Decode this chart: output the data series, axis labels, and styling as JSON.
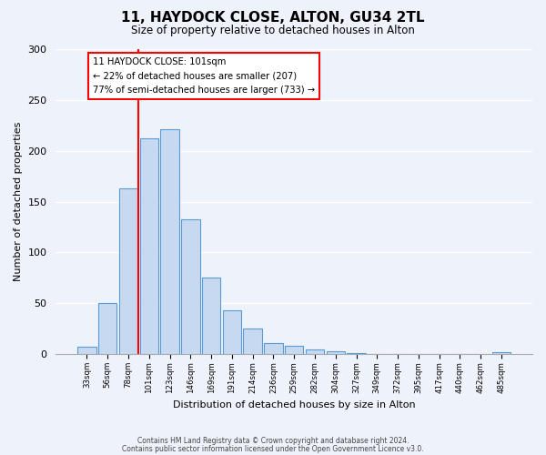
{
  "title": "11, HAYDOCK CLOSE, ALTON, GU34 2TL",
  "subtitle": "Size of property relative to detached houses in Alton",
  "xlabel": "Distribution of detached houses by size in Alton",
  "ylabel": "Number of detached properties",
  "footnote1": "Contains HM Land Registry data © Crown copyright and database right 2024.",
  "footnote2": "Contains public sector information licensed under the Open Government Licence v3.0.",
  "bin_labels": [
    "33sqm",
    "56sqm",
    "78sqm",
    "101sqm",
    "123sqm",
    "146sqm",
    "169sqm",
    "191sqm",
    "214sqm",
    "236sqm",
    "259sqm",
    "282sqm",
    "304sqm",
    "327sqm",
    "349sqm",
    "372sqm",
    "395sqm",
    "417sqm",
    "440sqm",
    "462sqm",
    "485sqm"
  ],
  "bar_values": [
    7,
    50,
    163,
    212,
    221,
    133,
    75,
    43,
    25,
    11,
    8,
    5,
    3,
    1,
    0,
    0,
    0,
    0,
    0,
    0,
    2
  ],
  "bar_color": "#c6d9f0",
  "bar_edge_color": "#5b9bd5",
  "vline_index": 3,
  "vline_color": "red",
  "ylim": [
    0,
    300
  ],
  "yticks": [
    0,
    50,
    100,
    150,
    200,
    250,
    300
  ],
  "annotation_title": "11 HAYDOCK CLOSE: 101sqm",
  "annotation_line1": "← 22% of detached houses are smaller (207)",
  "annotation_line2": "77% of semi-detached houses are larger (733) →",
  "annotation_box_color": "white",
  "annotation_box_edge": "red",
  "background_color": "#eef2fb"
}
